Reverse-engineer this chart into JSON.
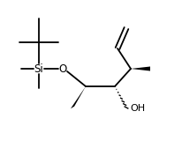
{
  "bg_color": "#ffffff",
  "line_color": "#000000",
  "Si_label": "Si",
  "O_label": "O",
  "OH_label": "OH",
  "fig_width": 2.06,
  "fig_height": 1.6,
  "dpi": 100,
  "lw": 1.3
}
